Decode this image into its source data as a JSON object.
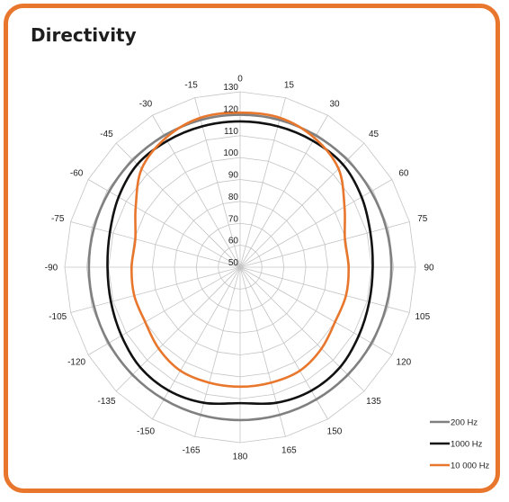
{
  "title": "Directivity",
  "colors": {
    "frame": "#e8762c",
    "grid": "#c4c4c4"
  },
  "chart_data": {
    "type": "polar-line",
    "title": "Directivity",
    "angle_ticks": [
      "0",
      "15",
      "30",
      "45",
      "60",
      "75",
      "90",
      "105",
      "120",
      "135",
      "150",
      "165",
      "180",
      "-165",
      "-150",
      "-135",
      "-120",
      "-105",
      "-90",
      "-75",
      "-60",
      "-45",
      "-30",
      "-15"
    ],
    "radial_ticks": [
      "50",
      "60",
      "70",
      "80",
      "90",
      "100",
      "110",
      "120",
      "130"
    ],
    "rlim": [
      50,
      130
    ],
    "grid": true,
    "legend_position": "bottom-right",
    "angles": [
      0,
      15,
      30,
      45,
      60,
      75,
      90,
      105,
      120,
      135,
      150,
      165,
      180,
      -165,
      -150,
      -135,
      -120,
      -105,
      -90,
      -75,
      -60,
      -45,
      -30,
      -15
    ],
    "series": [
      {
        "name": "200 Hz",
        "color": "#808080",
        "values": [
          119.5,
          119.5,
          119.3,
          119.2,
          119,
          119,
          119,
          119,
          119.2,
          119.4,
          119.6,
          119.7,
          119.7,
          119.7,
          119.6,
          119.4,
          119.2,
          119,
          119,
          119,
          119,
          119.2,
          119.3,
          119.5
        ]
      },
      {
        "name": "1000 Hz",
        "color": "#111111",
        "values": [
          116.5,
          116.5,
          116.5,
          116.3,
          114,
          111.5,
          110.5,
          111,
          112.5,
          114.5,
          115,
          114,
          112,
          114,
          115,
          114.5,
          112.5,
          111,
          110.5,
          111.5,
          114,
          116.3,
          116.5,
          116.5
        ]
      },
      {
        "name": "10 000 Hz",
        "color": "#e8762c",
        "values": [
          120.5,
          120.5,
          118,
          113.5,
          105,
          99.5,
          99.5,
          100,
          100,
          102.5,
          104.5,
          104.5,
          104.5,
          104.5,
          104.5,
          102.5,
          100,
          100,
          99.5,
          99.5,
          105,
          113.5,
          118,
          120.5
        ]
      }
    ]
  }
}
